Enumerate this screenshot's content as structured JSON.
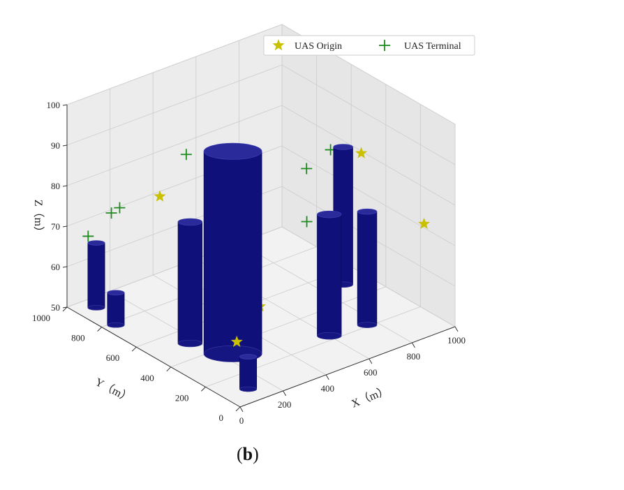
{
  "panel_label": {
    "open": "(",
    "letter": "b",
    "close": ")"
  },
  "chart_data": {
    "type": "3d-scatter-with-cylinders",
    "xlabel": "X（m）",
    "ylabel": "Y（m）",
    "zlabel": "Z（m）",
    "xlim": [
      0,
      1000
    ],
    "ylim": [
      0,
      1000
    ],
    "zlim": [
      50,
      100
    ],
    "xticks": [
      0,
      200,
      400,
      600,
      800,
      1000
    ],
    "yticks": [
      0,
      200,
      400,
      600,
      800,
      1000
    ],
    "zticks": [
      50,
      60,
      70,
      80,
      90,
      100
    ],
    "grid": true,
    "legend_placement": "top-right",
    "colors": {
      "obstacle": "#10107a",
      "origin": "#c8c000",
      "terminal": "#1f8a1f",
      "pane": "#efefef"
    },
    "legend": [
      {
        "label": "UAS Origin",
        "marker": "star-icon"
      },
      {
        "label": "UAS Terminal",
        "marker": "plus-icon"
      }
    ],
    "obstacles": [
      {
        "x": 240,
        "y": 340,
        "r": 120,
        "z0": 50,
        "z1": 100
      },
      {
        "x": 170,
        "y": 500,
        "r": 50,
        "z0": 50,
        "z1": 80
      },
      {
        "x": 600,
        "y": 230,
        "r": 50,
        "z0": 50,
        "z1": 80
      },
      {
        "x": 760,
        "y": 210,
        "r": 40,
        "z0": 50,
        "z1": 78
      },
      {
        "x": 890,
        "y": 510,
        "r": 40,
        "z0": 50,
        "z1": 84
      },
      {
        "x": 80,
        "y": 930,
        "r": 35,
        "z0": 50,
        "z1": 66
      },
      {
        "x": 50,
        "y": 780,
        "r": 35,
        "z0": 50,
        "z1": 58
      },
      {
        "x": 110,
        "y": 90,
        "r": 35,
        "z0": 50,
        "z1": 58
      },
      {
        "x": 520,
        "y": 720,
        "r": 70,
        "z0": 60,
        "z1": 63
      }
    ],
    "series": [
      {
        "name": "UAS Origin",
        "points": [
          {
            "x": 950,
            "y": 480,
            "z": 82
          },
          {
            "x": 150,
            "y": 650,
            "z": 83
          },
          {
            "x": 920,
            "y": 80,
            "z": 75
          },
          {
            "x": 350,
            "y": 320,
            "z": 60
          },
          {
            "x": 530,
            "y": 650,
            "z": 60
          },
          {
            "x": 210,
            "y": 280,
            "z": 55
          }
        ]
      },
      {
        "name": "UAS Terminal",
        "points": [
          {
            "x": 100,
            "y": 820,
            "z": 77
          },
          {
            "x": 450,
            "y": 870,
            "z": 82
          },
          {
            "x": 760,
            "y": 560,
            "z": 80
          },
          {
            "x": 600,
            "y": 360,
            "z": 75
          },
          {
            "x": 150,
            "y": 930,
            "z": 72
          },
          {
            "x": 50,
            "y": 940,
            "z": 68
          },
          {
            "x": 300,
            "y": 420,
            "z": 62
          },
          {
            "x": 920,
            "y": 620,
            "z": 80
          }
        ]
      }
    ]
  }
}
